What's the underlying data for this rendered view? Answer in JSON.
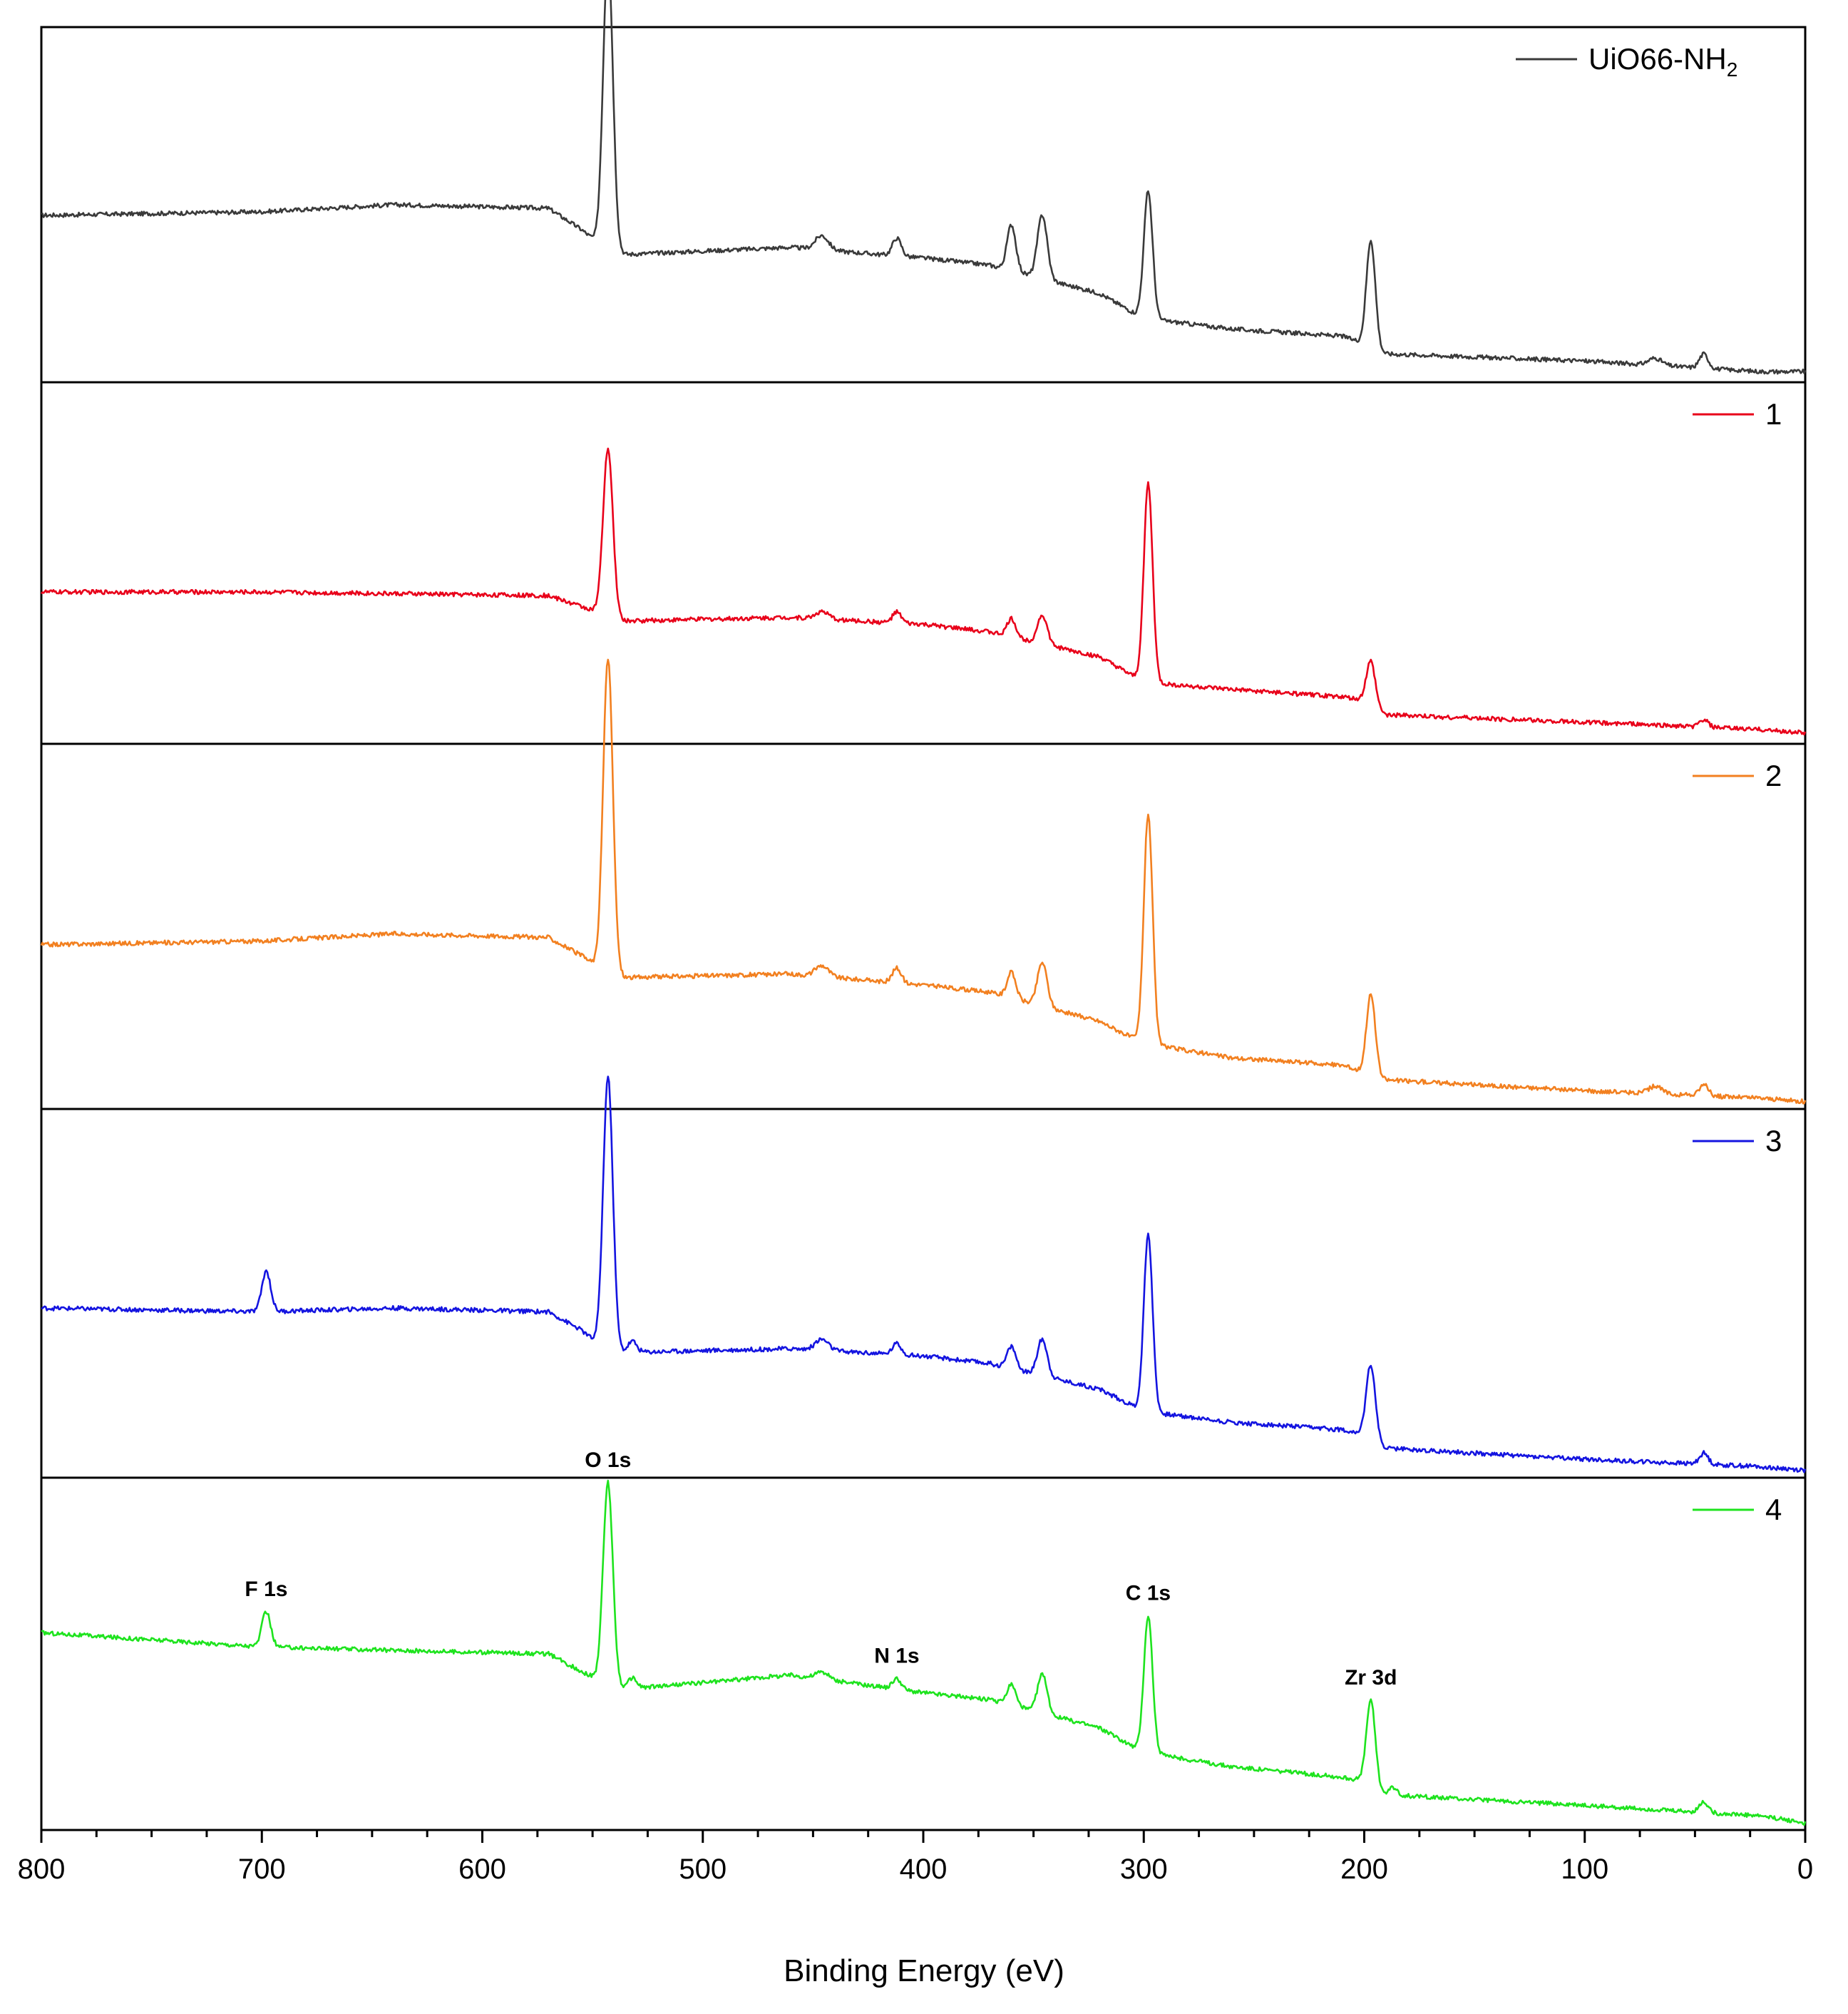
{
  "chart_data": {
    "type": "line",
    "layout": "stacked-panels",
    "xlabel": "Binding Energy (eV)",
    "xlim": [
      800,
      0
    ],
    "x_reversed": true,
    "x_ticks": [
      800,
      700,
      600,
      500,
      400,
      300,
      200,
      100,
      0
    ],
    "ylabel": "",
    "y_ticks_shown": false,
    "grid": false,
    "legend_position": "top-right of each panel",
    "series": [
      {
        "name": "UiO66-NH2",
        "legend_main": "UiO66-NH",
        "legend_sub": "2",
        "color": "#3a3a3a",
        "baseline": [
          [
            800,
            0.47
          ],
          [
            700,
            0.48
          ],
          [
            640,
            0.5
          ],
          [
            570,
            0.49
          ],
          [
            555,
            0.43
          ],
          [
            545,
            0.38
          ],
          [
            535,
            0.36
          ],
          [
            460,
            0.38
          ],
          [
            400,
            0.35
          ],
          [
            370,
            0.33
          ],
          [
            320,
            0.25
          ],
          [
            300,
            0.18
          ],
          [
            260,
            0.15
          ],
          [
            210,
            0.13
          ],
          [
            200,
            0.11
          ],
          [
            190,
            0.08
          ],
          [
            100,
            0.06
          ],
          [
            20,
            0.03
          ],
          [
            0,
            0.03
          ]
        ],
        "peaks": [
          {
            "position": 543,
            "height": 0.83,
            "width": 2.2
          },
          {
            "position": 446,
            "height": 0.04,
            "width": 3
          },
          {
            "position": 412,
            "height": 0.05,
            "width": 2
          },
          {
            "position": 360,
            "height": 0.13,
            "width": 2
          },
          {
            "position": 346,
            "height": 0.18,
            "width": 2.2
          },
          {
            "position": 298,
            "height": 0.36,
            "width": 2
          },
          {
            "position": 197,
            "height": 0.3,
            "width": 2
          },
          {
            "position": 68,
            "height": 0.02,
            "width": 3
          },
          {
            "position": 46,
            "height": 0.04,
            "width": 2
          }
        ]
      },
      {
        "name": "1",
        "legend_main": "1",
        "legend_sub": "",
        "color": "#e8001a",
        "baseline": [
          [
            800,
            0.42
          ],
          [
            700,
            0.42
          ],
          [
            570,
            0.41
          ],
          [
            555,
            0.38
          ],
          [
            545,
            0.36
          ],
          [
            535,
            0.34
          ],
          [
            460,
            0.35
          ],
          [
            400,
            0.33
          ],
          [
            370,
            0.31
          ],
          [
            320,
            0.24
          ],
          [
            300,
            0.17
          ],
          [
            260,
            0.15
          ],
          [
            210,
            0.13
          ],
          [
            200,
            0.12
          ],
          [
            190,
            0.08
          ],
          [
            100,
            0.06
          ],
          [
            20,
            0.04
          ],
          [
            0,
            0.03
          ]
        ],
        "peaks": [
          {
            "position": 543,
            "height": 0.46,
            "width": 2.2
          },
          {
            "position": 446,
            "height": 0.02,
            "width": 3
          },
          {
            "position": 412,
            "height": 0.03,
            "width": 2
          },
          {
            "position": 360,
            "height": 0.05,
            "width": 2
          },
          {
            "position": 346,
            "height": 0.08,
            "width": 2.2
          },
          {
            "position": 298,
            "height": 0.55,
            "width": 2
          },
          {
            "position": 197,
            "height": 0.12,
            "width": 2
          },
          {
            "position": 46,
            "height": 0.02,
            "width": 2
          }
        ]
      },
      {
        "name": "2",
        "legend_main": "2",
        "legend_sub": "",
        "color": "#f28020",
        "baseline": [
          [
            800,
            0.45
          ],
          [
            700,
            0.46
          ],
          [
            640,
            0.48
          ],
          [
            570,
            0.47
          ],
          [
            555,
            0.42
          ],
          [
            545,
            0.38
          ],
          [
            535,
            0.36
          ],
          [
            460,
            0.37
          ],
          [
            400,
            0.34
          ],
          [
            370,
            0.32
          ],
          [
            320,
            0.24
          ],
          [
            300,
            0.18
          ],
          [
            260,
            0.14
          ],
          [
            210,
            0.12
          ],
          [
            200,
            0.1
          ],
          [
            190,
            0.08
          ],
          [
            100,
            0.05
          ],
          [
            20,
            0.03
          ],
          [
            0,
            0.02
          ]
        ],
        "peaks": [
          {
            "position": 543,
            "height": 0.86,
            "width": 2.2
          },
          {
            "position": 446,
            "height": 0.03,
            "width": 3
          },
          {
            "position": 412,
            "height": 0.04,
            "width": 2
          },
          {
            "position": 360,
            "height": 0.07,
            "width": 2
          },
          {
            "position": 346,
            "height": 0.12,
            "width": 2.2
          },
          {
            "position": 298,
            "height": 0.63,
            "width": 2
          },
          {
            "position": 197,
            "height": 0.22,
            "width": 2
          },
          {
            "position": 68,
            "height": 0.02,
            "width": 3
          },
          {
            "position": 46,
            "height": 0.03,
            "width": 2
          }
        ]
      },
      {
        "name": "3",
        "legend_main": "3",
        "legend_sub": "",
        "color": "#1414e0",
        "baseline": [
          [
            800,
            0.46
          ],
          [
            700,
            0.45
          ],
          [
            640,
            0.46
          ],
          [
            570,
            0.45
          ],
          [
            555,
            0.4
          ],
          [
            545,
            0.35
          ],
          [
            535,
            0.34
          ],
          [
            460,
            0.35
          ],
          [
            400,
            0.33
          ],
          [
            370,
            0.31
          ],
          [
            320,
            0.24
          ],
          [
            300,
            0.18
          ],
          [
            260,
            0.15
          ],
          [
            210,
            0.13
          ],
          [
            200,
            0.12
          ],
          [
            190,
            0.08
          ],
          [
            100,
            0.05
          ],
          [
            20,
            0.03
          ],
          [
            0,
            0.02
          ]
        ],
        "peaks": [
          {
            "position": 698,
            "height": 0.11,
            "width": 2
          },
          {
            "position": 543,
            "height": 0.74,
            "width": 2.2
          },
          {
            "position": 532,
            "height": 0.03,
            "width": 2
          },
          {
            "position": 446,
            "height": 0.03,
            "width": 3
          },
          {
            "position": 412,
            "height": 0.03,
            "width": 2
          },
          {
            "position": 360,
            "height": 0.06,
            "width": 2
          },
          {
            "position": 346,
            "height": 0.1,
            "width": 2.2
          },
          {
            "position": 298,
            "height": 0.48,
            "width": 2
          },
          {
            "position": 197,
            "height": 0.2,
            "width": 2
          },
          {
            "position": 46,
            "height": 0.03,
            "width": 2
          }
        ]
      },
      {
        "name": "4",
        "legend_main": "4",
        "legend_sub": "",
        "color": "#1ee31e",
        "baseline": [
          [
            800,
            0.56
          ],
          [
            700,
            0.52
          ],
          [
            640,
            0.51
          ],
          [
            570,
            0.5
          ],
          [
            555,
            0.45
          ],
          [
            545,
            0.42
          ],
          [
            535,
            0.4
          ],
          [
            460,
            0.44
          ],
          [
            400,
            0.39
          ],
          [
            370,
            0.37
          ],
          [
            320,
            0.29
          ],
          [
            300,
            0.22
          ],
          [
            260,
            0.18
          ],
          [
            210,
            0.15
          ],
          [
            200,
            0.14
          ],
          [
            190,
            0.1
          ],
          [
            100,
            0.07
          ],
          [
            20,
            0.04
          ],
          [
            0,
            0.02
          ]
        ],
        "peaks": [
          {
            "position": 698,
            "height": 0.1,
            "width": 2
          },
          {
            "position": 543,
            "height": 0.57,
            "width": 2.2
          },
          {
            "position": 532,
            "height": 0.03,
            "width": 2
          },
          {
            "position": 446,
            "height": 0.02,
            "width": 3
          },
          {
            "position": 412,
            "height": 0.03,
            "width": 2
          },
          {
            "position": 360,
            "height": 0.06,
            "width": 2
          },
          {
            "position": 346,
            "height": 0.11,
            "width": 2.2
          },
          {
            "position": 298,
            "height": 0.39,
            "width": 2
          },
          {
            "position": 197,
            "height": 0.24,
            "width": 2
          },
          {
            "position": 187,
            "height": 0.02,
            "width": 2
          },
          {
            "position": 46,
            "height": 0.03,
            "width": 2
          }
        ]
      }
    ],
    "annotations": [
      {
        "text": "F 1s",
        "x": 698,
        "series": "4"
      },
      {
        "text": "O 1s",
        "x": 543,
        "series": "4"
      },
      {
        "text": "N 1s",
        "x": 412,
        "series": "4"
      },
      {
        "text": "C 1s",
        "x": 298,
        "series": "4"
      },
      {
        "text": "Zr 3d",
        "x": 197,
        "series": "4"
      }
    ]
  }
}
